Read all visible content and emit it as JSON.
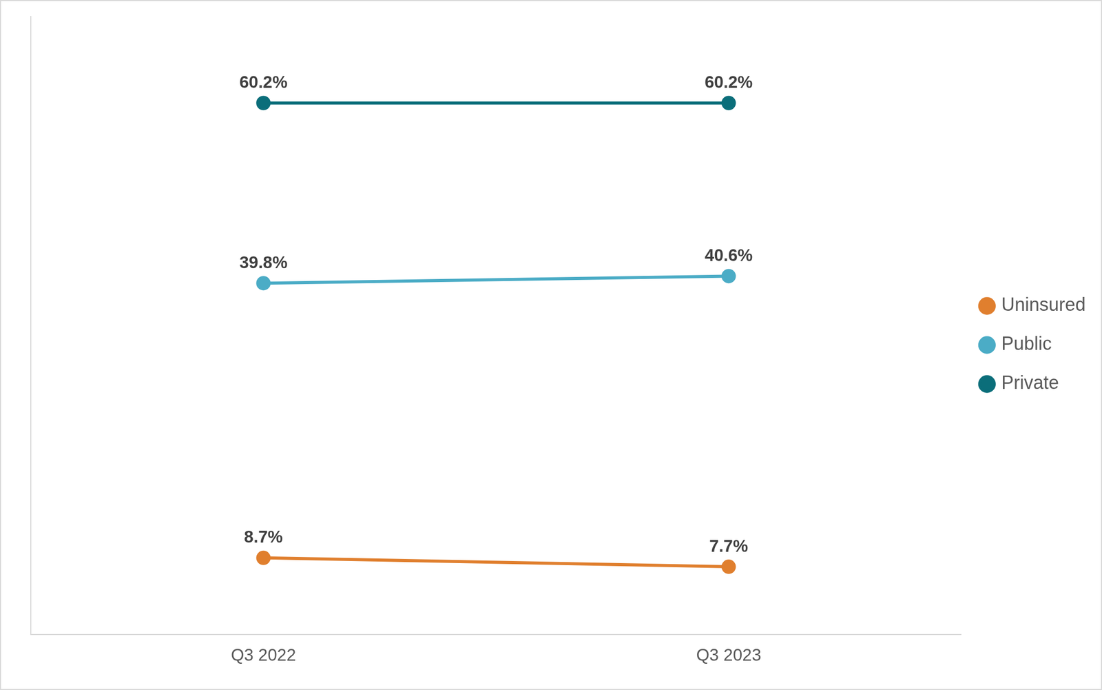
{
  "chart_data": {
    "type": "line",
    "categories": [
      "Q3 2022",
      "Q3 2023"
    ],
    "series": [
      {
        "name": "Uninsured",
        "color": "#E07F2E",
        "values": [
          8.7,
          7.7
        ],
        "value_labels": [
          "8.7%",
          "7.7%"
        ]
      },
      {
        "name": "Public",
        "color": "#4BACC6",
        "values": [
          39.8,
          40.6
        ],
        "value_labels": [
          "39.8%",
          "40.6%"
        ]
      },
      {
        "name": "Private",
        "color": "#0B6E7A",
        "values": [
          60.2,
          60.2
        ],
        "value_labels": [
          "60.2%",
          "60.2%"
        ]
      }
    ],
    "ylim": [
      0,
      70
    ],
    "grid": false,
    "legend": "right",
    "data_labels": true,
    "tick_labels": "x",
    "marker": "circle"
  }
}
